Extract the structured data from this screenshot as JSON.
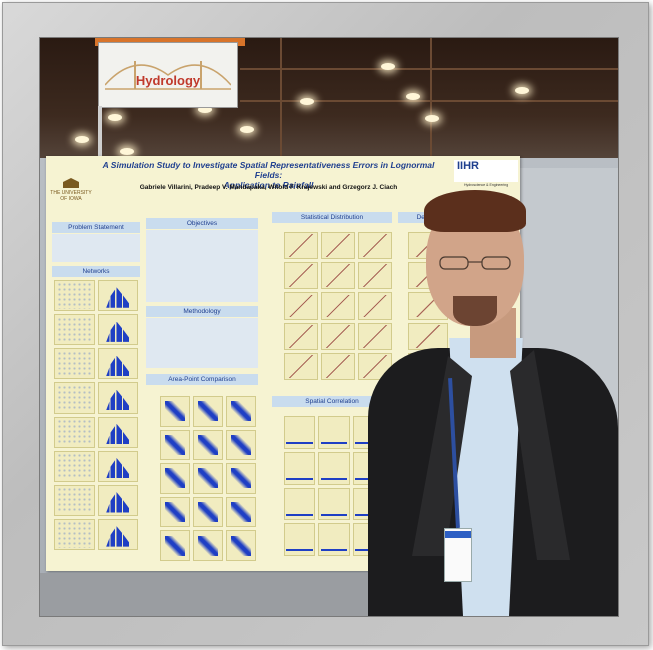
{
  "sign": {
    "text": "Hydrology"
  },
  "poster": {
    "title_line1": "A Simulation Study to Investigate Spatial Representativeness Errors in Lognormal Fields:",
    "title_line2": "Application to Rainfall",
    "authors": "Gabriele Villarini, Pradeep V. Mandapaka, Witold F. Krajewski and Grzegorz J. Ciach",
    "university": "THE UNIVERSITY OF IOWA",
    "logo_text": "IIHR",
    "logo_sub": "Hydroscience & Engineering",
    "sections": {
      "problem": "Problem Statement",
      "networks": "Networks",
      "objectives": "Objectives",
      "methodology": "Methodology",
      "area_point": "Area-Point Comparison",
      "statistical": "Statistical Distribution",
      "dependence": "Depend",
      "spatial": "Spatial Correlation"
    }
  }
}
